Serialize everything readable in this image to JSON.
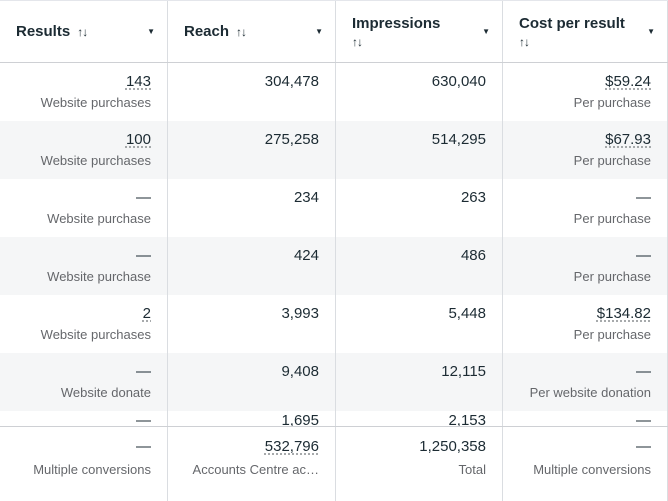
{
  "colors": {
    "text": "#1c2b33",
    "muted_label": "#65676b",
    "alt_row_bg": "#f5f6f7",
    "column_border": "#dadde1",
    "strong_border": "#ced0d4"
  },
  "icons": {
    "sort": "↑↓",
    "chevron_down": "▼"
  },
  "header": {
    "columns": [
      {
        "label": "Results"
      },
      {
        "label": "Reach"
      },
      {
        "label": "Impressions"
      },
      {
        "label": "Cost per result"
      }
    ]
  },
  "rows": [
    {
      "results": "143",
      "results_label": "Website purchases",
      "reach": "304,478",
      "impressions": "630,040",
      "cost": "$59.24",
      "cost_label": "Per purchase"
    },
    {
      "results": "100",
      "results_label": "Website purchases",
      "reach": "275,258",
      "impressions": "514,295",
      "cost": "$67.93",
      "cost_label": "Per purchase"
    },
    {
      "results": "—",
      "results_label": "Website purchase",
      "reach": "234",
      "impressions": "263",
      "cost": "—",
      "cost_label": "Per purchase"
    },
    {
      "results": "—",
      "results_label": "Website purchase",
      "reach": "424",
      "impressions": "486",
      "cost": "—",
      "cost_label": "Per purchase"
    },
    {
      "results": "2",
      "results_label": "Website purchases",
      "reach": "3,993",
      "impressions": "5,448",
      "cost": "$134.82",
      "cost_label": "Per purchase"
    },
    {
      "results": "—",
      "results_label": "Website donate",
      "reach": "9,408",
      "impressions": "12,115",
      "cost": "—",
      "cost_label": "Per website donation"
    },
    {
      "results": "—",
      "results_label": "",
      "reach": "1,695",
      "impressions": "2,153",
      "cost": "—",
      "cost_label": ""
    }
  ],
  "footer": {
    "results": "—",
    "results_label": "Multiple conversions",
    "reach": "532,796",
    "reach_label": "Accounts Centre ac…",
    "impressions": "1,250,358",
    "impressions_label": "Total",
    "cost": "—",
    "cost_label": "Multiple conversions"
  }
}
